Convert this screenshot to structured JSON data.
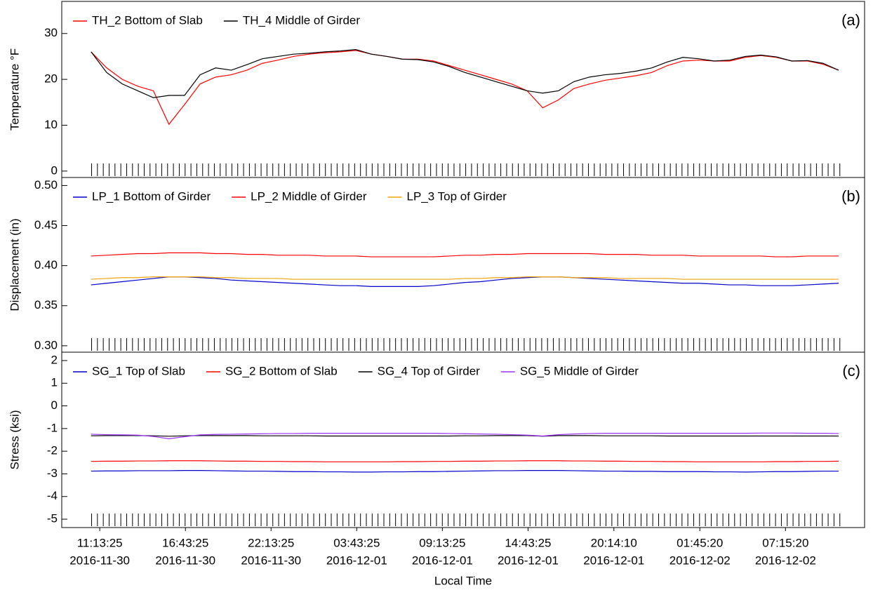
{
  "chart_data": [
    {
      "type": "line",
      "ylabel": "Temperature °F",
      "annotation": "(a)",
      "xlim": [
        "2016-11-30T08:47:00",
        "2016-12-02T12:20:00"
      ],
      "ylim": [
        -1.4,
        37
      ],
      "yticks": [
        0,
        10,
        20,
        30
      ],
      "x": [
        "2016-11-30T10:40:00",
        "2016-11-30T11:40:00",
        "2016-11-30T12:40:00",
        "2016-11-30T13:40:00",
        "2016-11-30T14:40:00",
        "2016-11-30T15:40:00",
        "2016-11-30T16:40:00",
        "2016-11-30T17:40:00",
        "2016-11-30T18:40:00",
        "2016-11-30T19:40:00",
        "2016-11-30T20:40:00",
        "2016-11-30T21:40:00",
        "2016-11-30T22:40:00",
        "2016-11-30T23:40:00",
        "2016-12-01T00:40:00",
        "2016-12-01T01:40:00",
        "2016-12-01T02:40:00",
        "2016-12-01T03:40:00",
        "2016-12-01T04:40:00",
        "2016-12-01T05:40:00",
        "2016-12-01T06:40:00",
        "2016-12-01T07:40:00",
        "2016-12-01T08:40:00",
        "2016-12-01T09:40:00",
        "2016-12-01T10:40:00",
        "2016-12-01T11:40:00",
        "2016-12-01T12:40:00",
        "2016-12-01T13:40:00",
        "2016-12-01T14:40:00",
        "2016-12-01T15:40:00",
        "2016-12-01T16:40:00",
        "2016-12-01T17:40:00",
        "2016-12-01T18:40:00",
        "2016-12-01T19:40:00",
        "2016-12-01T20:40:00",
        "2016-12-01T21:40:00",
        "2016-12-01T22:40:00",
        "2016-12-01T23:40:00",
        "2016-12-02T00:40:00",
        "2016-12-02T01:40:00",
        "2016-12-02T02:40:00",
        "2016-12-02T03:40:00",
        "2016-12-02T04:40:00",
        "2016-12-02T05:40:00",
        "2016-12-02T06:40:00",
        "2016-12-02T07:40:00",
        "2016-12-02T08:40:00",
        "2016-12-02T09:40:00",
        "2016-12-02T10:40:00"
      ],
      "series": [
        {
          "name": "TH_2 Bottom of Slab",
          "color": "#ff0000",
          "values": [
            26,
            22.5,
            20,
            18.5,
            17.5,
            10.2,
            14.5,
            19,
            20.5,
            21,
            22,
            23.5,
            24.2,
            25,
            25.5,
            25.8,
            26,
            26.3,
            25.5,
            25,
            24.4,
            24.4,
            24,
            23,
            22,
            21,
            20,
            19,
            17.5,
            13.8,
            15.5,
            18,
            19,
            19.8,
            20.3,
            20.8,
            21.5,
            23,
            24,
            24.2,
            24,
            24,
            24.8,
            25.2,
            24.8,
            24,
            24,
            23.3,
            22
          ]
        },
        {
          "name": "TH_4 Middle of Girder",
          "color": "#000000",
          "values": [
            26,
            21.5,
            19,
            17.5,
            16,
            16.5,
            16.5,
            21,
            22.5,
            22,
            23.2,
            24.5,
            25,
            25.5,
            25.7,
            26,
            26.2,
            26.5,
            25.5,
            25,
            24.4,
            24.3,
            23.8,
            22.8,
            21.5,
            20.5,
            19.5,
            18.5,
            17.5,
            17,
            17.5,
            19.5,
            20.5,
            21,
            21.3,
            21.8,
            22.5,
            23.8,
            24.8,
            24.5,
            24,
            24.2,
            25,
            25.3,
            24.9,
            24,
            24.1,
            23.5,
            22
          ]
        }
      ]
    },
    {
      "type": "line",
      "ylabel": "Displacement (in)",
      "annotation": "(b)",
      "xlim": [
        "2016-11-30T08:47:00",
        "2016-12-02T12:20:00"
      ],
      "ylim": [
        0.292,
        0.51
      ],
      "yticks": [
        {
          "value": 0.3,
          "label": "0.30"
        },
        0.35,
        {
          "value": 0.4,
          "label": "0.40"
        },
        0.45,
        {
          "value": 0.5,
          "label": "0.50"
        }
      ],
      "x": [
        "2016-11-30T10:40:00",
        "2016-11-30T11:40:00",
        "2016-11-30T12:40:00",
        "2016-11-30T13:40:00",
        "2016-11-30T14:40:00",
        "2016-11-30T15:40:00",
        "2016-11-30T16:40:00",
        "2016-11-30T17:40:00",
        "2016-11-30T18:40:00",
        "2016-11-30T19:40:00",
        "2016-11-30T20:40:00",
        "2016-11-30T21:40:00",
        "2016-11-30T22:40:00",
        "2016-11-30T23:40:00",
        "2016-12-01T00:40:00",
        "2016-12-01T01:40:00",
        "2016-12-01T02:40:00",
        "2016-12-01T03:40:00",
        "2016-12-01T04:40:00",
        "2016-12-01T05:40:00",
        "2016-12-01T06:40:00",
        "2016-12-01T07:40:00",
        "2016-12-01T08:40:00",
        "2016-12-01T09:40:00",
        "2016-12-01T10:40:00",
        "2016-12-01T11:40:00",
        "2016-12-01T12:40:00",
        "2016-12-01T13:40:00",
        "2016-12-01T14:40:00",
        "2016-12-01T15:40:00",
        "2016-12-01T16:40:00",
        "2016-12-01T17:40:00",
        "2016-12-01T18:40:00",
        "2016-12-01T19:40:00",
        "2016-12-01T20:40:00",
        "2016-12-01T21:40:00",
        "2016-12-01T22:40:00",
        "2016-12-01T23:40:00",
        "2016-12-02T00:40:00",
        "2016-12-02T01:40:00",
        "2016-12-02T02:40:00",
        "2016-12-02T03:40:00",
        "2016-12-02T04:40:00",
        "2016-12-02T05:40:00",
        "2016-12-02T06:40:00",
        "2016-12-02T07:40:00",
        "2016-12-02T08:40:00",
        "2016-12-02T09:40:00",
        "2016-12-02T10:40:00"
      ],
      "series": [
        {
          "name": "LP_1 Bottom of Girder",
          "color": "#0000cc",
          "values": [
            0.376,
            0.378,
            0.38,
            0.382,
            0.384,
            0.386,
            0.386,
            0.385,
            0.384,
            0.382,
            0.381,
            0.38,
            0.379,
            0.378,
            0.377,
            0.376,
            0.375,
            0.375,
            0.374,
            0.374,
            0.374,
            0.374,
            0.375,
            0.377,
            0.379,
            0.38,
            0.382,
            0.384,
            0.385,
            0.386,
            0.386,
            0.385,
            0.384,
            0.383,
            0.382,
            0.381,
            0.38,
            0.379,
            0.378,
            0.378,
            0.377,
            0.376,
            0.376,
            0.375,
            0.375,
            0.375,
            0.376,
            0.377,
            0.378
          ]
        },
        {
          "name": "LP_2 Middle of Girder",
          "color": "#ff0000",
          "values": [
            0.412,
            0.413,
            0.414,
            0.415,
            0.415,
            0.416,
            0.416,
            0.416,
            0.415,
            0.415,
            0.414,
            0.414,
            0.413,
            0.413,
            0.413,
            0.412,
            0.412,
            0.412,
            0.411,
            0.411,
            0.411,
            0.411,
            0.411,
            0.412,
            0.413,
            0.413,
            0.414,
            0.414,
            0.415,
            0.415,
            0.415,
            0.415,
            0.415,
            0.414,
            0.414,
            0.414,
            0.413,
            0.413,
            0.413,
            0.412,
            0.412,
            0.412,
            0.412,
            0.412,
            0.411,
            0.411,
            0.412,
            0.412,
            0.412
          ]
        },
        {
          "name": "LP_3 Top of Girder",
          "color": "#f0a30a",
          "values": [
            0.383,
            0.384,
            0.385,
            0.385,
            0.386,
            0.386,
            0.386,
            0.386,
            0.385,
            0.385,
            0.384,
            0.384,
            0.384,
            0.383,
            0.383,
            0.383,
            0.383,
            0.383,
            0.383,
            0.383,
            0.383,
            0.383,
            0.383,
            0.383,
            0.384,
            0.384,
            0.385,
            0.385,
            0.386,
            0.386,
            0.386,
            0.385,
            0.385,
            0.385,
            0.384,
            0.384,
            0.384,
            0.384,
            0.383,
            0.383,
            0.383,
            0.383,
            0.383,
            0.383,
            0.383,
            0.383,
            0.383,
            0.383,
            0.383
          ]
        }
      ]
    },
    {
      "type": "line",
      "ylabel": "Stress (ksi)",
      "annotation": "(c)",
      "xlabel": "Local Time",
      "xlim": [
        "2016-11-30T08:47:00",
        "2016-12-02T12:20:00"
      ],
      "xticks": [
        {
          "value": "2016-11-30T11:13:25",
          "label": [
            "11:13:25",
            "2016-11-30"
          ]
        },
        {
          "value": "2016-11-30T16:43:25",
          "label": [
            "16:43:25",
            "2016-11-30"
          ]
        },
        {
          "value": "2016-11-30T22:13:25",
          "label": [
            "22:13:25",
            "2016-11-30"
          ]
        },
        {
          "value": "2016-12-01T03:43:25",
          "label": [
            "03:43:25",
            "2016-12-01"
          ]
        },
        {
          "value": "2016-12-01T09:13:25",
          "label": [
            "09:13:25",
            "2016-12-01"
          ]
        },
        {
          "value": "2016-12-01T14:43:25",
          "label": [
            "14:43:25",
            "2016-12-01"
          ]
        },
        {
          "value": "2016-12-01T20:14:10",
          "label": [
            "20:14:10",
            "2016-12-01"
          ]
        },
        {
          "value": "2016-12-02T01:45:20",
          "label": [
            "01:45:20",
            "2016-12-02"
          ]
        },
        {
          "value": "2016-12-02T07:15:20",
          "label": [
            "07:15:20",
            "2016-12-02"
          ]
        }
      ],
      "ylim": [
        -5.37,
        2.37
      ],
      "yticks": [
        -5,
        -4,
        -3,
        -2,
        -1,
        0,
        1,
        2
      ],
      "x": [
        "2016-11-30T10:40:00",
        "2016-11-30T11:40:00",
        "2016-11-30T12:40:00",
        "2016-11-30T13:40:00",
        "2016-11-30T14:40:00",
        "2016-11-30T15:40:00",
        "2016-11-30T16:40:00",
        "2016-11-30T17:40:00",
        "2016-11-30T18:40:00",
        "2016-11-30T19:40:00",
        "2016-11-30T20:40:00",
        "2016-11-30T21:40:00",
        "2016-11-30T22:40:00",
        "2016-11-30T23:40:00",
        "2016-12-01T00:40:00",
        "2016-12-01T01:40:00",
        "2016-12-01T02:40:00",
        "2016-12-01T03:40:00",
        "2016-12-01T04:40:00",
        "2016-12-01T05:40:00",
        "2016-12-01T06:40:00",
        "2016-12-01T07:40:00",
        "2016-12-01T08:40:00",
        "2016-12-01T09:40:00",
        "2016-12-01T10:40:00",
        "2016-12-01T11:40:00",
        "2016-12-01T12:40:00",
        "2016-12-01T13:40:00",
        "2016-12-01T14:40:00",
        "2016-12-01T15:40:00",
        "2016-12-01T16:40:00",
        "2016-12-01T17:40:00",
        "2016-12-01T18:40:00",
        "2016-12-01T19:40:00",
        "2016-12-01T20:40:00",
        "2016-12-01T21:40:00",
        "2016-12-01T22:40:00",
        "2016-12-01T23:40:00",
        "2016-12-02T00:40:00",
        "2016-12-02T01:40:00",
        "2016-12-02T02:40:00",
        "2016-12-02T03:40:00",
        "2016-12-02T04:40:00",
        "2016-12-02T05:40:00",
        "2016-12-02T06:40:00",
        "2016-12-02T07:40:00",
        "2016-12-02T08:40:00",
        "2016-12-02T09:40:00",
        "2016-12-02T10:40:00"
      ],
      "series": [
        {
          "name": "SG_1 Top of Slab",
          "color": "#0000cc",
          "values": [
            -2.88,
            -2.87,
            -2.87,
            -2.86,
            -2.86,
            -2.86,
            -2.85,
            -2.85,
            -2.86,
            -2.87,
            -2.88,
            -2.88,
            -2.89,
            -2.9,
            -2.9,
            -2.91,
            -2.91,
            -2.92,
            -2.92,
            -2.91,
            -2.91,
            -2.9,
            -2.9,
            -2.89,
            -2.88,
            -2.87,
            -2.86,
            -2.86,
            -2.85,
            -2.85,
            -2.85,
            -2.86,
            -2.87,
            -2.88,
            -2.88,
            -2.89,
            -2.89,
            -2.9,
            -2.9,
            -2.9,
            -2.91,
            -2.91,
            -2.92,
            -2.91,
            -2.9,
            -2.9,
            -2.89,
            -2.88,
            -2.88
          ]
        },
        {
          "name": "SG_2 Bottom of Slab",
          "color": "#ff0000",
          "values": [
            -2.45,
            -2.44,
            -2.44,
            -2.43,
            -2.43,
            -2.42,
            -2.42,
            -2.42,
            -2.43,
            -2.44,
            -2.44,
            -2.45,
            -2.45,
            -2.46,
            -2.46,
            -2.47,
            -2.47,
            -2.47,
            -2.47,
            -2.47,
            -2.46,
            -2.46,
            -2.45,
            -2.45,
            -2.44,
            -2.44,
            -2.43,
            -2.43,
            -2.42,
            -2.42,
            -2.42,
            -2.43,
            -2.43,
            -2.44,
            -2.44,
            -2.45,
            -2.45,
            -2.46,
            -2.46,
            -2.47,
            -2.47,
            -2.47,
            -2.47,
            -2.47,
            -2.46,
            -2.46,
            -2.45,
            -2.45,
            -2.44
          ]
        },
        {
          "name": "SG_4 Top of Girder",
          "color": "#000000",
          "values": [
            -1.32,
            -1.31,
            -1.31,
            -1.31,
            -1.32,
            -1.34,
            -1.32,
            -1.31,
            -1.31,
            -1.31,
            -1.31,
            -1.32,
            -1.32,
            -1.32,
            -1.32,
            -1.33,
            -1.33,
            -1.33,
            -1.33,
            -1.33,
            -1.33,
            -1.33,
            -1.33,
            -1.33,
            -1.32,
            -1.32,
            -1.31,
            -1.31,
            -1.31,
            -1.34,
            -1.31,
            -1.31,
            -1.31,
            -1.32,
            -1.32,
            -1.32,
            -1.32,
            -1.33,
            -1.33,
            -1.33,
            -1.33,
            -1.33,
            -1.33,
            -1.33,
            -1.33,
            -1.33,
            -1.33,
            -1.33,
            -1.33
          ]
        },
        {
          "name": "SG_5 Middle of Girder",
          "color": "#9b30ff",
          "values": [
            -1.25,
            -1.27,
            -1.28,
            -1.29,
            -1.35,
            -1.45,
            -1.36,
            -1.28,
            -1.26,
            -1.25,
            -1.24,
            -1.23,
            -1.22,
            -1.22,
            -1.21,
            -1.21,
            -1.21,
            -1.21,
            -1.21,
            -1.21,
            -1.21,
            -1.21,
            -1.21,
            -1.22,
            -1.23,
            -1.24,
            -1.25,
            -1.27,
            -1.29,
            -1.33,
            -1.27,
            -1.24,
            -1.22,
            -1.21,
            -1.21,
            -1.21,
            -1.21,
            -1.21,
            -1.21,
            -1.21,
            -1.21,
            -1.21,
            -1.21,
            -1.2,
            -1.2,
            -1.2,
            -1.21,
            -1.21,
            -1.22
          ]
        }
      ]
    }
  ]
}
